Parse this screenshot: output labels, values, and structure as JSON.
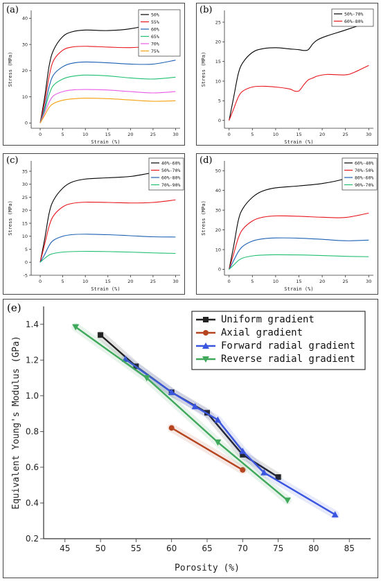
{
  "chart_data": [
    {
      "panel": "(a)",
      "type": "line",
      "xlabel": "Strain (%)",
      "ylabel": "Stress (MPa)",
      "xlim": [
        -2,
        31
      ],
      "ylim": [
        -2,
        43
      ],
      "xticks": [
        0,
        5,
        10,
        15,
        20,
        25,
        30
      ],
      "yticks": [
        0,
        10,
        20,
        30,
        40
      ],
      "legend_position": "top-right",
      "series": [
        {
          "name": "50%",
          "color": "#000000",
          "x": [
            0,
            1,
            2,
            3,
            5,
            7,
            10,
            15,
            20,
            25,
            30
          ],
          "y": [
            0,
            10,
            22,
            28,
            33,
            34.8,
            35.5,
            35.3,
            36,
            38,
            42
          ]
        },
        {
          "name": "55%",
          "color": "#e8141b",
          "x": [
            0,
            1,
            2,
            3,
            5,
            7,
            10,
            15,
            20,
            25,
            30
          ],
          "y": [
            0,
            8,
            18,
            24,
            27.8,
            29,
            29.3,
            29,
            28.8,
            29.5,
            32
          ]
        },
        {
          "name": "60%",
          "color": "#1a5fb4",
          "x": [
            0,
            1,
            2,
            3,
            5,
            7,
            10,
            15,
            20,
            25,
            30
          ],
          "y": [
            0,
            6,
            14,
            18.5,
            21.5,
            22.8,
            23.3,
            23,
            22.5,
            22.5,
            24
          ]
        },
        {
          "name": "65%",
          "color": "#1fbf6f",
          "x": [
            0,
            1,
            2,
            3,
            5,
            7,
            10,
            15,
            20,
            25,
            30
          ],
          "y": [
            0,
            5,
            11,
            14.5,
            16.8,
            17.8,
            18.3,
            18,
            17.2,
            16.8,
            17.5
          ]
        },
        {
          "name": "70%",
          "color": "#e85be8",
          "x": [
            0,
            1,
            2,
            3,
            5,
            7,
            10,
            15,
            20,
            25,
            30
          ],
          "y": [
            0,
            4,
            8,
            10.5,
            12,
            12.6,
            12.8,
            12.6,
            12,
            11.5,
            12
          ]
        },
        {
          "name": "75%",
          "color": "#f5a00f",
          "x": [
            0,
            1,
            2,
            3,
            5,
            7,
            10,
            15,
            20,
            25,
            30
          ],
          "y": [
            0,
            3,
            6,
            7.5,
            8.7,
            9.2,
            9.5,
            9.3,
            8.8,
            8.3,
            8.5
          ]
        }
      ]
    },
    {
      "panel": "(b)",
      "type": "line",
      "xlabel": "Strain (%)",
      "ylabel": "Stress (MPa)",
      "xlim": [
        -1,
        31
      ],
      "ylim": [
        -2,
        28
      ],
      "xticks": [
        0,
        5,
        10,
        15,
        20,
        25,
        30
      ],
      "yticks": [
        0,
        5,
        10,
        15,
        20,
        25
      ],
      "legend_position": "top-right",
      "series": [
        {
          "name": "50%-70%",
          "color": "#000000",
          "x": [
            0,
            1,
            2,
            3,
            5,
            7,
            10,
            13,
            15,
            16,
            17,
            18,
            19,
            21,
            25,
            30
          ],
          "y": [
            0,
            6,
            12,
            14.8,
            17.3,
            18.2,
            18.5,
            18.2,
            18,
            17.8,
            18,
            19.5,
            20.5,
            21.5,
            23,
            25
          ]
        },
        {
          "name": "60%-80%",
          "color": "#e8141b",
          "x": [
            0,
            1,
            2,
            3,
            5,
            7,
            10,
            13,
            14,
            15,
            16,
            17,
            18,
            19,
            21,
            25,
            27,
            30
          ],
          "y": [
            0,
            3,
            6,
            7.5,
            8.5,
            8.7,
            8.5,
            8,
            7.5,
            7.5,
            9,
            10.3,
            10.8,
            11.3,
            11.7,
            11.6,
            12.3,
            14
          ]
        }
      ]
    },
    {
      "panel": "(c)",
      "type": "line",
      "xlabel": "Strain (%)",
      "ylabel": "Stress (MPa)",
      "xlim": [
        -2,
        31
      ],
      "ylim": [
        -5,
        39
      ],
      "xticks": [
        0,
        5,
        10,
        15,
        20,
        25,
        30
      ],
      "yticks": [
        -5,
        0,
        5,
        10,
        15,
        20,
        25,
        30,
        35
      ],
      "legend_position": "top-right",
      "series": [
        {
          "name": "40%-60%",
          "color": "#000000",
          "x": [
            0,
            1,
            2,
            3,
            5,
            7,
            10,
            15,
            20,
            25,
            30
          ],
          "y": [
            0,
            9,
            19,
            24,
            28.5,
            30.8,
            32,
            32.5,
            33,
            34.5,
            36.5
          ]
        },
        {
          "name": "50%-70%",
          "color": "#e8141b",
          "x": [
            0,
            1,
            2,
            3,
            5,
            7,
            10,
            15,
            20,
            25,
            30
          ],
          "y": [
            0,
            7,
            14,
            18,
            21.3,
            22.6,
            23.1,
            23,
            22.8,
            23,
            24
          ]
        },
        {
          "name": "60%-80%",
          "color": "#1a5fb4",
          "x": [
            0,
            1,
            2,
            3,
            5,
            7,
            10,
            15,
            20,
            25,
            30
          ],
          "y": [
            0,
            3,
            6.5,
            8.5,
            10,
            10.6,
            10.8,
            10.6,
            10.2,
            9.8,
            9.7
          ]
        },
        {
          "name": "70%-90%",
          "color": "#1fbf6f",
          "x": [
            0,
            1,
            2,
            3,
            5,
            7,
            10,
            15,
            20,
            25,
            30
          ],
          "y": [
            0,
            1.5,
            2.8,
            3.4,
            3.9,
            4.1,
            4.2,
            4.1,
            3.9,
            3.6,
            3.4
          ]
        }
      ]
    },
    {
      "panel": "(d)",
      "type": "line",
      "xlabel": "Strain (%)",
      "ylabel": "Stress (MPa)",
      "xlim": [
        -1,
        31
      ],
      "ylim": [
        -3,
        55
      ],
      "xticks": [
        0,
        5,
        10,
        15,
        20,
        25,
        30
      ],
      "yticks": [
        0,
        10,
        20,
        30,
        40,
        50
      ],
      "legend_position": "top-right",
      "series": [
        {
          "name": "60%-40%",
          "color": "#000000",
          "x": [
            0,
            1,
            2,
            3,
            5,
            7,
            10,
            15,
            20,
            25,
            30
          ],
          "y": [
            0,
            12,
            25,
            31,
            36.5,
            39.5,
            41.3,
            42.3,
            43.5,
            46,
            50.5
          ]
        },
        {
          "name": "70%-50%",
          "color": "#e8141b",
          "x": [
            0,
            1,
            2,
            3,
            5,
            7,
            10,
            15,
            20,
            25,
            30
          ],
          "y": [
            0,
            8,
            16,
            20.5,
            24.5,
            26.3,
            27.1,
            26.9,
            26.4,
            26.3,
            28.5
          ]
        },
        {
          "name": "80%-60%",
          "color": "#1a5fb4",
          "x": [
            0,
            1,
            2,
            3,
            5,
            7,
            10,
            15,
            20,
            25,
            30
          ],
          "y": [
            0,
            4.5,
            9,
            11.8,
            14.3,
            15.4,
            15.9,
            15.8,
            15.2,
            14.5,
            14.8
          ]
        },
        {
          "name": "90%-70%",
          "color": "#1fbf6f",
          "x": [
            0,
            1,
            2,
            3,
            5,
            7,
            10,
            15,
            20,
            25,
            30
          ],
          "y": [
            0,
            2.2,
            4.5,
            5.8,
            6.8,
            7.2,
            7.4,
            7.3,
            7,
            6.6,
            6.4
          ]
        }
      ]
    },
    {
      "panel": "(e)",
      "type": "line",
      "xlabel": "Porosity (%)",
      "ylabel": "Equivalent Young's Modulus (GPa)",
      "xlim": [
        42,
        88
      ],
      "ylim": [
        0.2,
        1.5
      ],
      "xticks": [
        45,
        50,
        55,
        60,
        65,
        70,
        75,
        80,
        85
      ],
      "yticks": [
        0.2,
        0.4,
        0.6,
        0.8,
        1.0,
        1.2,
        1.4
      ],
      "ytick_labels": [
        "0.2",
        "0.4",
        "0.6",
        "0.8",
        "1.0",
        "1.2",
        "1.4"
      ],
      "legend_position": "top-right",
      "series": [
        {
          "name": "Uniform gradient",
          "color": "#222222",
          "marker": "square",
          "x": [
            50,
            55,
            60,
            65,
            70,
            75
          ],
          "y": [
            1.34,
            1.165,
            1.02,
            0.905,
            0.67,
            0.545
          ]
        },
        {
          "name": "Axial gradient",
          "color": "#b5441f",
          "marker": "circle",
          "x": [
            60,
            70
          ],
          "y": [
            0.82,
            0.585
          ]
        },
        {
          "name": "Forward radial gradient",
          "color": "#3a55e0",
          "marker": "triangle-up",
          "x": [
            53.5,
            60,
            63.3,
            66.5,
            70,
            73,
            83
          ],
          "y": [
            1.205,
            1.02,
            0.94,
            0.865,
            0.69,
            0.57,
            0.335
          ]
        },
        {
          "name": "Reverse radial gradient",
          "color": "#3fa85a",
          "marker": "triangle-down",
          "x": [
            46.5,
            56.5,
            66.5,
            76.3
          ],
          "y": [
            1.385,
            1.1,
            0.74,
            0.415
          ]
        }
      ]
    }
  ]
}
